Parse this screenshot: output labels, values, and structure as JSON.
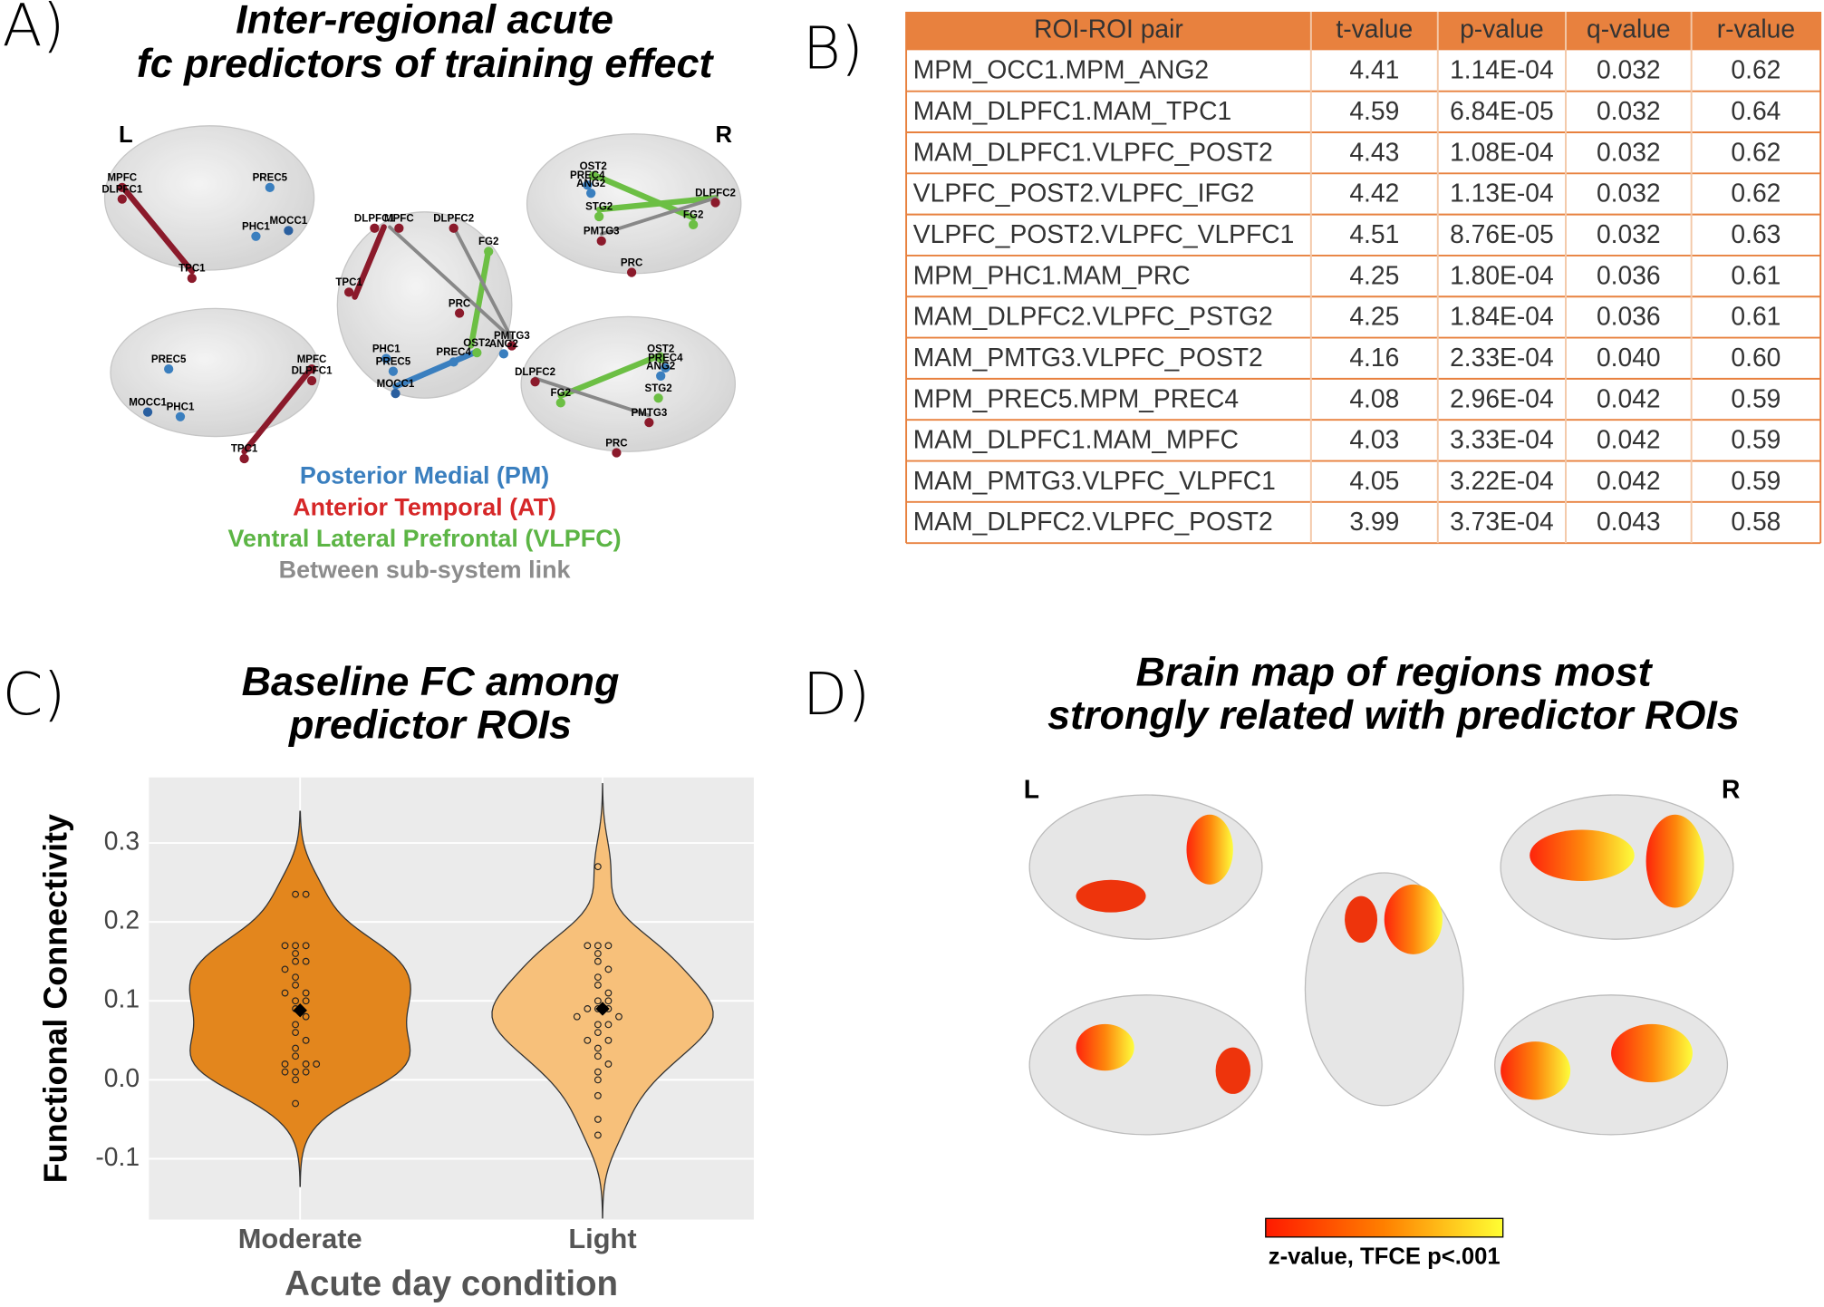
{
  "panel_a": {
    "label": "A)",
    "title": [
      "Inter-regional acute",
      "fc predictors of training effect"
    ],
    "left": "L",
    "right": "R",
    "views": [
      {
        "nodes": [
          "MPFC",
          "DLPFC1",
          "PREC5",
          "PHC1",
          "MOCC1",
          "TPC1"
        ]
      },
      {
        "nodes": [
          "PREC5",
          "MOCC1",
          "PHC1",
          "MPFC",
          "DLPFC1",
          "TPC1"
        ]
      },
      {
        "nodes": [
          "DLPFC1",
          "MPFC",
          "DLPFC2",
          "FG2",
          "TPC1",
          "PRC",
          "PHC1",
          "PREC5",
          "MOCC1",
          "PREC4",
          "OST2",
          "PMTG3",
          "ANG2"
        ]
      },
      {
        "nodes": [
          "OST2",
          "PREC4",
          "ANG2",
          "DLPFC2",
          "STG2",
          "FG2",
          "PMTG3",
          "PRC"
        ]
      },
      {
        "nodes": [
          "OST2",
          "PREC4",
          "ANG2",
          "DLPFC2",
          "STG2",
          "FG2",
          "PMTG3",
          "PRC"
        ]
      }
    ],
    "legend": [
      {
        "text": "Posterior Medial (PM)",
        "color": "#3a7fbf"
      },
      {
        "text": "Anterior Temporal (AT)",
        "color": "#d62728"
      },
      {
        "text": "Ventral Lateral Prefrontal (VLPFC)",
        "color": "#5cb545"
      },
      {
        "text": "Between sub-system link",
        "color": "#8c8c8c"
      }
    ]
  },
  "panel_b": {
    "label": "B)",
    "table": {
      "header": [
        "ROI-ROI pair",
        "t-value",
        "p-value",
        "q-value",
        "r-value"
      ],
      "rows": [
        [
          "MPM_OCC1.MPM_ANG2",
          "4.41",
          "1.14E-04",
          "0.032",
          "0.62"
        ],
        [
          "MAM_DLPFC1.MAM_TPC1",
          "4.59",
          "6.84E-05",
          "0.032",
          "0.64"
        ],
        [
          "MAM_DLPFC1.VLPFC_POST2",
          "4.43",
          "1.08E-04",
          "0.032",
          "0.62"
        ],
        [
          "VLPFC_POST2.VLPFC_IFG2",
          "4.42",
          "1.13E-04",
          "0.032",
          "0.62"
        ],
        [
          "VLPFC_POST2.VLPFC_VLPFC1",
          "4.51",
          "8.76E-05",
          "0.032",
          "0.63"
        ],
        [
          "MPM_PHC1.MAM_PRC",
          "4.25",
          "1.80E-04",
          "0.036",
          "0.61"
        ],
        [
          "MAM_DLPFC2.VLPFC_PSTG2",
          "4.25",
          "1.84E-04",
          "0.036",
          "0.61"
        ],
        [
          "MAM_PMTG3.VLPFC_POST2",
          "4.16",
          "2.33E-04",
          "0.040",
          "0.60"
        ],
        [
          "MPM_PREC5.MPM_PREC4",
          "4.08",
          "2.96E-04",
          "0.042",
          "0.59"
        ],
        [
          "MAM_DLPFC1.MAM_MPFC",
          "4.03",
          "3.33E-04",
          "0.042",
          "0.59"
        ],
        [
          "MAM_PMTG3.VLPFC_VLPFC1",
          "4.05",
          "3.22E-04",
          "0.042",
          "0.59"
        ],
        [
          "MAM_DLPFC2.VLPFC_POST2",
          "3.99",
          "3.73E-04",
          "0.043",
          "0.58"
        ]
      ]
    }
  },
  "panel_c": {
    "label": "C)"
  },
  "chart_data": {
    "type": "violin",
    "title": [
      "Baseline FC among",
      "predictor ROIs"
    ],
    "x_label": "Acute day condition",
    "y_label": "Functional Connectivity",
    "categories": [
      "Moderate",
      "Light"
    ],
    "colors": [
      "#e3861d",
      "#f7c07a"
    ],
    "values": [
      [
        0.235,
        0.235,
        0.17,
        0.17,
        0.17,
        0.16,
        0.15,
        0.15,
        0.14,
        0.13,
        0.12,
        0.11,
        0.11,
        0.1,
        0.1,
        0.09,
        0.08,
        0.07,
        0.06,
        0.05,
        0.04,
        0.03,
        0.02,
        0.02,
        0.02,
        0.01,
        0.01,
        0.01,
        0.0,
        -0.03
      ],
      [
        0.27,
        0.17,
        0.17,
        0.17,
        0.16,
        0.15,
        0.14,
        0.13,
        0.12,
        0.11,
        0.1,
        0.1,
        0.09,
        0.09,
        0.09,
        0.08,
        0.08,
        0.07,
        0.07,
        0.06,
        0.05,
        0.05,
        0.04,
        0.03,
        0.02,
        0.01,
        0.0,
        -0.02,
        -0.05,
        -0.07
      ]
    ],
    "means": [
      0.088,
      0.09
    ],
    "ylim": [
      -0.177,
      0.383
    ],
    "yticks": [
      -0.1,
      {
        "value": 0,
        "label": "0.0"
      },
      0.1,
      0.2,
      0.3
    ],
    "grid": true
  },
  "panel_d": {
    "label": "D)",
    "title": [
      "Brain map of regions most",
      "strongly related with predictor ROIs"
    ],
    "left": "L",
    "right": "R",
    "colorbar_label": "z-value, TFCE p<.001"
  }
}
